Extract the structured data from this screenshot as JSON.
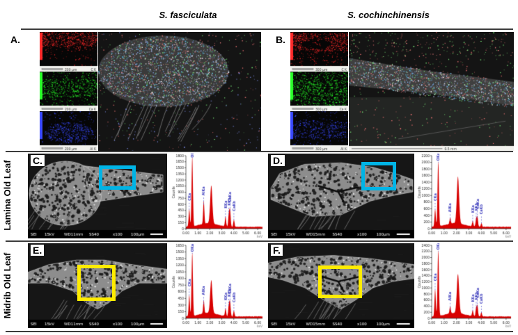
{
  "figure": {
    "headers": {
      "left": "S. fasciculata",
      "right": "S. cochinchinensis"
    },
    "row_labels": {
      "lamina": "Lamina Old Leaf",
      "midrib": "Midrib Old Leaf"
    }
  },
  "panels": {
    "A": {
      "label": "A.",
      "composite_scale": "",
      "maps": [
        {
          "element": "C K",
          "scale": "200 μm",
          "color": "#ff2a2a",
          "profile": "top"
        },
        {
          "element": "Ca K",
          "scale": "200 μm",
          "color": "#2aff2a",
          "profile": "mid"
        },
        {
          "element": "Al K",
          "scale": "200 μm",
          "color": "#3a4aff",
          "profile": "mound"
        }
      ]
    },
    "B": {
      "label": "B.",
      "composite_scale": "0.5 mm",
      "maps": [
        {
          "element": "C K",
          "scale": "300 μm",
          "color": "#ff2a2a",
          "profile": "band-top"
        },
        {
          "element": "Ca K",
          "scale": "300 μm",
          "color": "#2aff2a",
          "profile": "full"
        },
        {
          "element": "Al K",
          "scale": "300 μm",
          "color": "#3a4aff",
          "profile": "band-mid"
        }
      ]
    },
    "C": {
      "label": "C.",
      "roi_color": "#00b4e6",
      "shape": "lamina-blob",
      "info": [
        "SEI",
        "15kV",
        "WD11mm",
        "SS40",
        "x100",
        "100μm"
      ]
    },
    "D": {
      "label": "D.",
      "roi_color": "#00b4e6",
      "shape": "lamina-band",
      "info": [
        "SEI",
        "15kV",
        "WD15mm",
        "SS40",
        "x100",
        "100μm"
      ]
    },
    "E": {
      "label": "E.",
      "roi_color": "#ffec00",
      "shape": "midrib-mound",
      "info": [
        "SEI",
        "15kV",
        "WD11mm",
        "SS40",
        "x100",
        "100μm"
      ]
    },
    "F": {
      "label": "F.",
      "roi_color": "#ffec00",
      "shape": "midrib-crack",
      "info": [
        "SEI",
        "15kV",
        "WD15mm",
        "SS40",
        "x100",
        "100μm"
      ]
    }
  },
  "chart_data": [
    {
      "id": "spectrum-C",
      "panel": "C",
      "type": "area",
      "series_color": "#d80000",
      "xlabel": "keV",
      "ylabel": "Counts",
      "xlim": [
        0,
        6.4
      ],
      "ylim": [
        0,
        1800
      ],
      "ytick_step": 150,
      "xtick_labels": [
        "0.00",
        "1.00",
        "2.00",
        "3.00",
        "4.00",
        "5.00",
        "6.00"
      ],
      "peaks": [
        {
          "label": "CKa",
          "keV": 0.28,
          "counts": 430
        },
        {
          "label": "OKa",
          "keV": 0.53,
          "counts": 1700
        },
        {
          "label": "AlKa",
          "keV": 1.49,
          "counts": 560
        },
        {
          "label": "",
          "keV": 2.12,
          "counts": 930
        },
        {
          "label": "KKa",
          "keV": 3.31,
          "counts": 240
        },
        {
          "label": "KKb",
          "keV": 3.59,
          "counts": 310
        },
        {
          "label": "CaKa",
          "keV": 3.69,
          "counts": 400
        },
        {
          "label": "CaKb",
          "keV": 4.01,
          "counts": 175
        }
      ]
    },
    {
      "id": "spectrum-D",
      "panel": "D",
      "type": "area",
      "series_color": "#d80000",
      "xlabel": "keV",
      "ylabel": "Counts",
      "xlim": [
        0,
        6.4
      ],
      "ylim": [
        0,
        2200
      ],
      "ytick_step": 200,
      "xtick_labels": [
        "0.00",
        "1.00",
        "2.00",
        "3.00",
        "4.00",
        "5.00",
        "6.00"
      ],
      "peaks": [
        {
          "label": "CKa",
          "keV": 0.28,
          "counts": 520
        },
        {
          "label": "OKa",
          "keV": 0.53,
          "counts": 1950
        },
        {
          "label": "AlKa",
          "keV": 1.49,
          "counts": 180
        },
        {
          "label": "",
          "keV": 2.12,
          "counts": 1400
        },
        {
          "label": "KKa",
          "keV": 3.31,
          "counts": 160
        },
        {
          "label": "KKb",
          "keV": 3.59,
          "counts": 220
        },
        {
          "label": "CaKa",
          "keV": 3.69,
          "counts": 280
        },
        {
          "label": "CaKb",
          "keV": 4.01,
          "counts": 115
        }
      ]
    },
    {
      "id": "spectrum-E",
      "panel": "E",
      "type": "area",
      "series_color": "#d80000",
      "xlabel": "keV",
      "ylabel": "Counts",
      "xlim": [
        0,
        6.4
      ],
      "ylim": [
        0,
        1650
      ],
      "ytick_step": 150,
      "xtick_labels": [
        "0.00",
        "1.00",
        "2.00",
        "3.00",
        "4.00",
        "5.00",
        "6.00"
      ],
      "peaks": [
        {
          "label": "CKa",
          "keV": 0.28,
          "counts": 480
        },
        {
          "label": "OKa",
          "keV": 0.53,
          "counts": 1430
        },
        {
          "label": "AlKa",
          "keV": 1.49,
          "counts": 290
        },
        {
          "label": "",
          "keV": 2.12,
          "counts": 740
        },
        {
          "label": "KKa",
          "keV": 3.31,
          "counts": 170
        },
        {
          "label": "KKb",
          "keV": 3.59,
          "counts": 250
        },
        {
          "label": "CaKa",
          "keV": 3.69,
          "counts": 320
        },
        {
          "label": "CaKb",
          "keV": 4.01,
          "counts": 125
        }
      ]
    },
    {
      "id": "spectrum-F",
      "panel": "F",
      "type": "area",
      "series_color": "#d80000",
      "xlabel": "keV",
      "ylabel": "Counts",
      "xlim": [
        0,
        6.4
      ],
      "ylim": [
        0,
        2400
      ],
      "ytick_step": 200,
      "xtick_labels": [
        "0.00",
        "1.00",
        "2.00",
        "3.00",
        "4.00",
        "5.00",
        "6.00"
      ],
      "peaks": [
        {
          "label": "CKa",
          "keV": 0.28,
          "counts": 880
        },
        {
          "label": "OKa",
          "keV": 0.53,
          "counts": 2150
        },
        {
          "label": "AlKa",
          "keV": 1.49,
          "counts": 230
        },
        {
          "label": "",
          "keV": 2.12,
          "counts": 1280
        },
        {
          "label": "KKa",
          "keV": 3.31,
          "counts": 190
        },
        {
          "label": "KKb",
          "keV": 3.59,
          "counts": 260
        },
        {
          "label": "CaKa",
          "keV": 3.69,
          "counts": 330
        },
        {
          "label": "CaKb",
          "keV": 4.01,
          "counts": 135
        }
      ]
    }
  ]
}
